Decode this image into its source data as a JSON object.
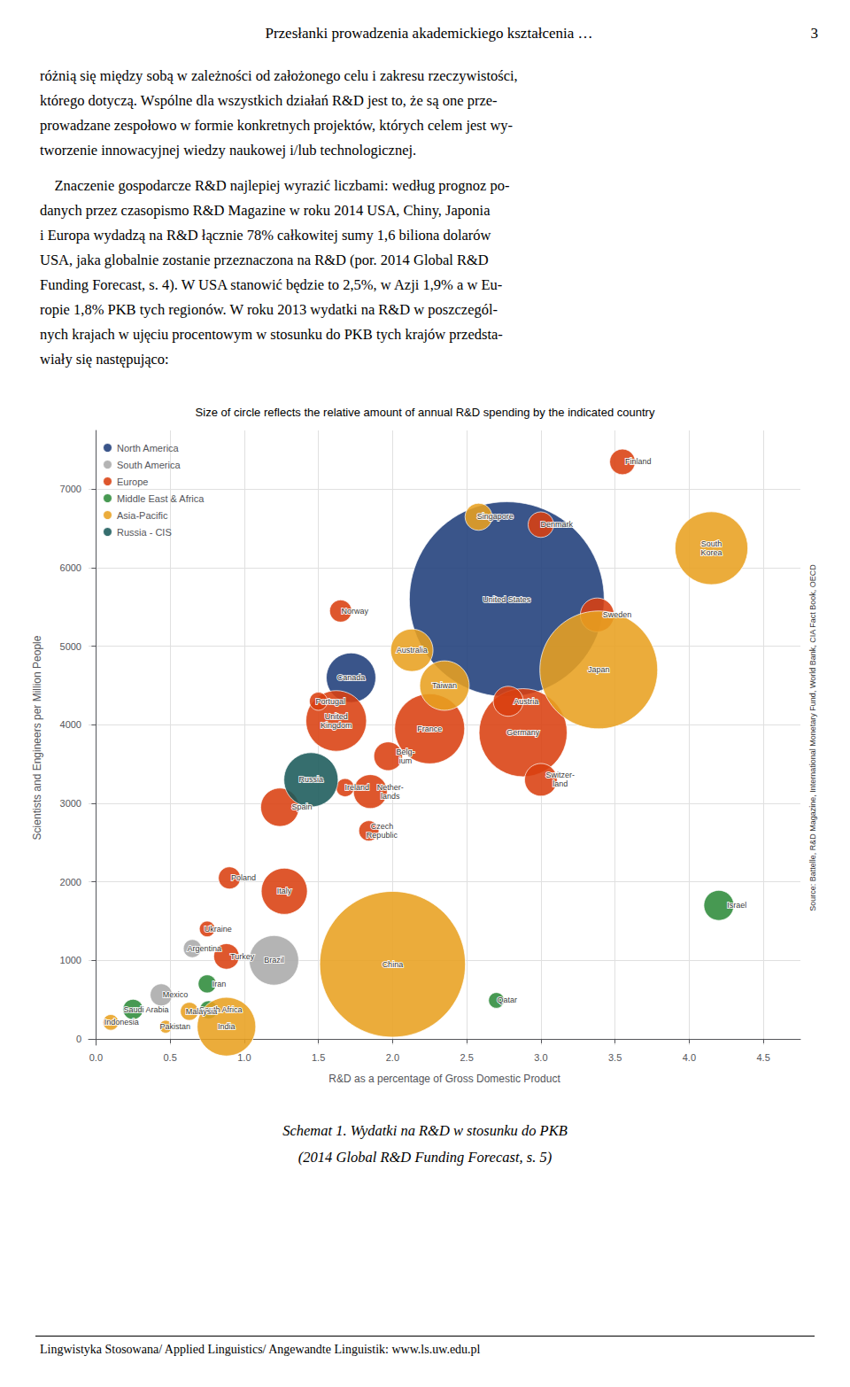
{
  "page_title": "Przesłanki prowadzenia akademickiego kształcenia …",
  "page_number": "3",
  "paragraphs": [
    [
      "różnią się między sobą w zależności od założonego celu i zakresu rzeczywistości,",
      "którego dotyczą. Wspólne dla wszystkich działań R&D jest to, że są one prze-",
      "prowadzane zespołowo w formie konkretnych projektów, których celem jest wy-",
      "tworzenie innowacyjnej wiedzy naukowej i/lub technologicznej."
    ],
    [
      "    Znaczenie gospodarcze R&D najlepiej wyrazić liczbami: według prognoz po-",
      "danych przez czasopismo R&D Magazine w roku 2014 USA, Chiny, Japonia",
      "i Europa wydadzą na R&D łącznie 78% całkowitej sumy 1,6 biliona dolarów",
      "USA, jaka globalnie zostanie przeznaczona na R&D (por. 2014 Global R&D",
      "Funding Forecast, s. 4). W USA stanowić będzie to 2,5%, w Azji 1,9% a w Eu-",
      "ropie 1,8% PKB tych regionów. W roku 2013 wydatki na R&D w poszczegól-",
      "nych krajach w ujęciu procentowym w stosunku do PKB tych krajów przedsta-",
      "wiały się następująco:"
    ]
  ],
  "caption": [
    "Schemat 1. Wydatki na R&D w stosunku do PKB",
    "(2014 Global R&D Funding Forecast, s. 5)"
  ],
  "footer": "Lingwistyka Stosowana/ Applied Linguistics/ Angewandte Linguistik: www.ls.uw.edu.pl",
  "chart_data": {
    "type": "scatter",
    "title": "Size of circle reflects the relative amount of annual R&D spending by the indicated country",
    "x_label": "R&D as a percentage of Gross Domestic Product",
    "y_label": "Scientists and Engineers per Million People",
    "annotations": [
      "Source: Battelle, R&D Magazine, International Monetary Fund, World Bank, CIA Fact Book, OECD"
    ],
    "xlim": [
      -0.05,
      4.75
    ],
    "ylim": [
      -80,
      7750
    ],
    "xticks": [
      {
        "value": 0,
        "label": "0.0"
      },
      0.5,
      {
        "value": 1,
        "label": "1.0"
      },
      1.5,
      {
        "value": 2,
        "label": "2.0"
      },
      2.5,
      {
        "value": 3,
        "label": "3.0"
      },
      3.5,
      {
        "value": 4,
        "label": "4.0"
      },
      4.5
    ],
    "yticks": [
      0,
      1000,
      2000,
      3000,
      4000,
      5000,
      6000,
      7000
    ],
    "grid": true,
    "legend": "upper left",
    "marker": "circle",
    "series": [
      {
        "name": "North America",
        "color": "#1f3d7a",
        "labels": [
          "United States",
          "Canada"
        ],
        "x": [
          2.77,
          1.72
        ],
        "values": [
          5600,
          4600
        ],
        "sizes": [
          465,
          30
        ]
      },
      {
        "name": "South America",
        "color": "#aaaaaa",
        "labels": [
          "Brazil",
          "Argentina",
          "Mexico"
        ],
        "x": [
          1.2,
          0.65,
          0.44
        ],
        "values": [
          1000,
          1150,
          560
        ],
        "sizes": [
          30,
          4,
          6
        ]
      },
      {
        "name": "Europe",
        "color": "#d94010",
        "labels": [
          "Germany",
          "France",
          "United\nKingdom",
          "Sweden",
          "Finland",
          "Denmark",
          "Austria",
          "Switzer-\nland",
          "Nether-\nlands",
          "Belg-\nium",
          "Norway",
          "Portugal",
          "Spain",
          "Italy",
          "Ireland",
          "Czech\nRepublic",
          "Poland",
          "Ukraine",
          "Turkey"
        ],
        "x": [
          2.88,
          2.25,
          1.62,
          3.38,
          3.55,
          3.0,
          2.78,
          3.0,
          1.85,
          1.97,
          1.65,
          1.5,
          1.24,
          1.27,
          1.68,
          1.84,
          0.9,
          0.75,
          0.88
        ],
        "values": [
          3900,
          3950,
          4050,
          5400,
          7350,
          6550,
          4300,
          3300,
          3150,
          3600,
          5450,
          4300,
          2950,
          1880,
          3200,
          2650,
          2050,
          1400,
          1050
        ],
        "sizes": [
          95,
          60,
          45,
          14,
          8,
          8,
          11,
          13,
          14,
          10,
          6,
          4,
          18,
          26,
          4,
          5,
          6,
          3,
          8
        ]
      },
      {
        "name": "Middle East & Africa",
        "color": "#2e8b3a",
        "labels": [
          "Israel",
          "Qatar",
          "South Africa",
          "Iran",
          "Saudi Arabia"
        ],
        "x": [
          4.2,
          2.7,
          0.76,
          0.75,
          0.25
        ],
        "values": [
          1700,
          490,
          370,
          700,
          375
        ],
        "sizes": [
          11,
          3,
          4,
          4,
          5
        ]
      },
      {
        "name": "Asia-Pacific",
        "color": "#e8a020",
        "labels": [
          "Japan",
          "China",
          "South\nKorea",
          "Australia",
          "Singapore",
          "Taiwan",
          "Malaysia",
          "India",
          "Pakistan",
          "Indonesia"
        ],
        "x": [
          3.39,
          2.0,
          4.15,
          2.13,
          2.58,
          2.35,
          0.63,
          0.88,
          0.47,
          0.1
        ],
        "values": [
          4700,
          950,
          6250,
          4950,
          6650,
          4500,
          350,
          155,
          155,
          210
        ],
        "sizes": [
          170,
          260,
          65,
          22,
          9,
          30,
          4,
          42,
          2,
          3
        ]
      },
      {
        "name": "Russia - CIS",
        "color": "#1a5a5a",
        "labels": [
          "Russia"
        ],
        "x": [
          1.45
        ],
        "values": [
          3300
        ],
        "sizes": [
          36
        ]
      }
    ]
  }
}
